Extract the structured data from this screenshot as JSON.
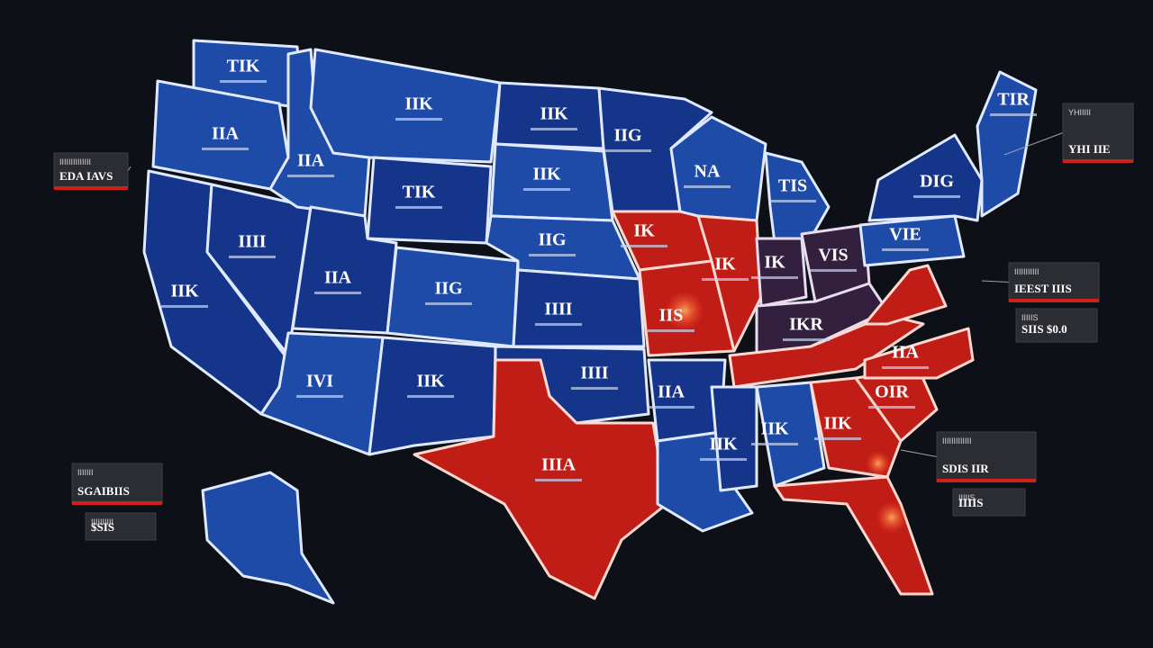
{
  "map": {
    "states": [
      {
        "label": "TIK"
      },
      {
        "label": "IIA"
      },
      {
        "label": "IIA"
      },
      {
        "label": "IIK"
      },
      {
        "label": "IIK"
      },
      {
        "label": "IIG"
      },
      {
        "label": "NA"
      },
      {
        "label": "TIS"
      },
      {
        "label": "TIK"
      },
      {
        "label": "IIK"
      },
      {
        "label": "IIG"
      },
      {
        "label": "IK"
      },
      {
        "label": "IK"
      },
      {
        "label": "IK"
      },
      {
        "label": "VIS"
      },
      {
        "label": "VIE"
      },
      {
        "label": "DIG"
      },
      {
        "label": "TIR"
      },
      {
        "label": "IIII"
      },
      {
        "label": "IIA"
      },
      {
        "label": "IIG"
      },
      {
        "label": "IIII"
      },
      {
        "label": "IIS"
      },
      {
        "label": "IIK"
      },
      {
        "label": "IVI"
      },
      {
        "label": "IIK"
      },
      {
        "label": "IIII"
      },
      {
        "label": "IKR"
      },
      {
        "label": "IIA"
      },
      {
        "label": "IIA"
      },
      {
        "label": "IIIA"
      },
      {
        "label": "IIK"
      },
      {
        "label": "IIK"
      },
      {
        "label": "IIK"
      },
      {
        "label": "OIR"
      }
    ],
    "callouts": [
      {
        "heading": "IIIIIIIIIIIIII",
        "value": "EDA IAVS"
      },
      {
        "heading": "IIIIIII",
        "value": "SGAIBIIS"
      },
      {
        "heading": "IIIIIIIIII",
        "value": "$SIS"
      },
      {
        "heading": "YHIIIII",
        "value": "YHI IIE"
      },
      {
        "heading": "IIIIIIIIIII",
        "value": "IEEST IIIS"
      },
      {
        "heading": "IIIIIS",
        "value": "SIIS $0.0"
      },
      {
        "heading": "IIIIIIIIIIIII",
        "value": "SDIS IIR"
      },
      {
        "heading": "IIIIIS",
        "value": "IIIIS"
      }
    ]
  }
}
